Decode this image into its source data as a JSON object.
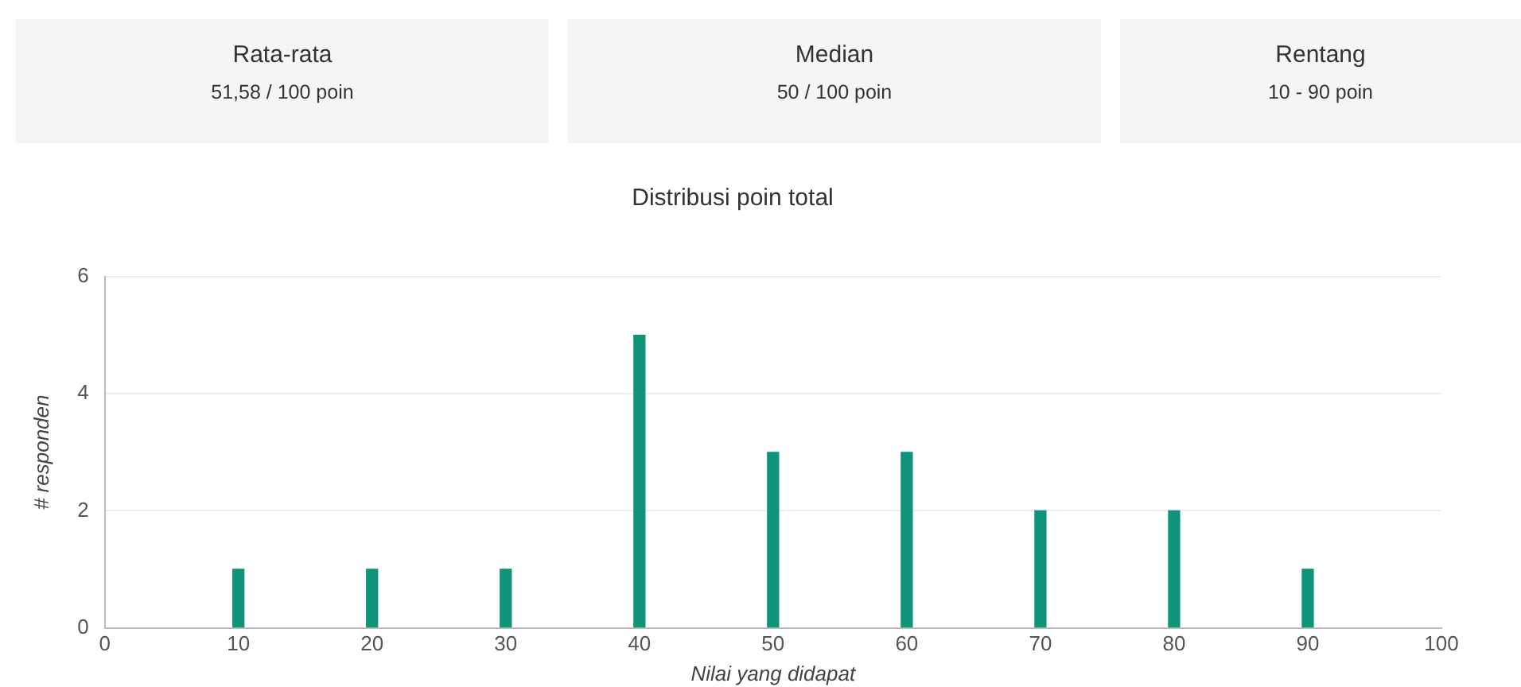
{
  "chart_data": [
    {
      "type": "other",
      "title": "Rata-rata",
      "annotations": [
        "51,58 / 100 poin"
      ]
    },
    {
      "type": "other",
      "title": "Median",
      "annotations": [
        "50 / 100 poin"
      ]
    },
    {
      "type": "other",
      "title": "Rentang",
      "annotations": [
        "10 - 90 poin"
      ]
    },
    {
      "type": "bar",
      "title": "Distribusi poin total",
      "xlabel": "Nilai yang didapat",
      "ylabel": "# responden",
      "x": [
        10,
        20,
        30,
        40,
        50,
        60,
        70,
        80,
        90
      ],
      "values": [
        1,
        1,
        1,
        5,
        3,
        3,
        2,
        2,
        1
      ],
      "color": "#10937b",
      "xlim": [
        0,
        100
      ],
      "xticks": [
        0,
        10,
        20,
        30,
        40,
        50,
        60,
        70,
        80,
        90,
        100
      ],
      "ylim": [
        0,
        6
      ],
      "yticks": [
        0,
        2,
        4,
        6
      ],
      "grid": "y"
    }
  ]
}
